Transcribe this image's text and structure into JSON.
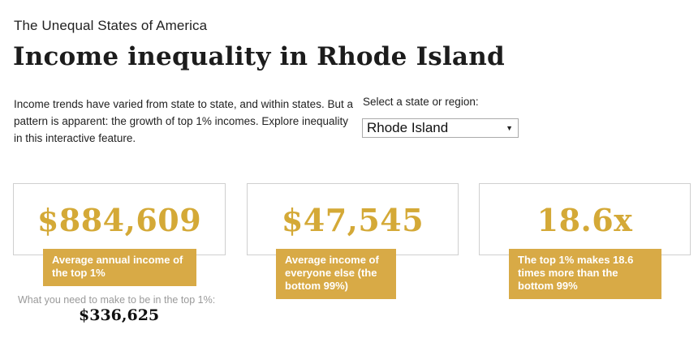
{
  "header": {
    "kicker": "The Unequal States of America",
    "title": "Income inequality in Rhode Island"
  },
  "intro": {
    "text": "Income trends have varied from state to state, and within states. But a pattern is apparent: the growth of top 1% incomes. Explore inequality in this interactive feature."
  },
  "state_selector": {
    "label": "Select a state or region:",
    "selected": "Rhode Island"
  },
  "cards": [
    {
      "value": "$884,609",
      "caption": "Average annual income of the top 1%"
    },
    {
      "value": "$47,545",
      "caption": "Average income of everyone else (the bottom 99%)"
    },
    {
      "value": "18.6x",
      "caption": "The top 1% makes 18.6 times more than the bottom 99%"
    }
  ],
  "threshold": {
    "label": "What you need to make to be in the top 1%:",
    "value": "$336,625"
  },
  "colors": {
    "accent_gold": "#d4a937",
    "tag_gold": "#d8aa46"
  }
}
